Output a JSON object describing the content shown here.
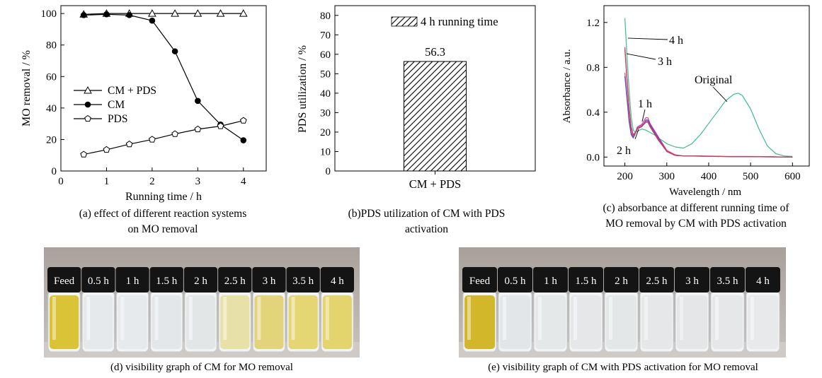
{
  "chart_data": [
    {
      "panel": "a",
      "type": "line",
      "xlabel": "Running time / h",
      "ylabel": "MO removal / %",
      "xlim": [
        0,
        4.5
      ],
      "ylim": [
        0,
        105
      ],
      "xticks": [
        "0",
        "1",
        "2",
        "3",
        "4"
      ],
      "yticks": [
        "0",
        "20",
        "40",
        "60",
        "80",
        "100"
      ],
      "legend_position": "center-left",
      "series": [
        {
          "name": "CM + PDS",
          "marker": "open-triangle",
          "x": [
            0.5,
            1,
            1.5,
            2,
            2.5,
            3,
            3.5,
            4
          ],
          "y": [
            99.5,
            100,
            100,
            100,
            100,
            100,
            100,
            100
          ]
        },
        {
          "name": "CM",
          "marker": "filled-circle",
          "x": [
            0.5,
            1,
            1.5,
            2,
            2.5,
            3,
            3.5,
            4
          ],
          "y": [
            99,
            99.5,
            99,
            95.5,
            76,
            44.5,
            29.5,
            19.5
          ]
        },
        {
          "name": "PDS",
          "marker": "open-pentagon",
          "x": [
            0.5,
            1,
            1.5,
            2,
            2.5,
            3,
            3.5,
            4
          ],
          "y": [
            10.5,
            13.5,
            17,
            20,
            23.5,
            26.5,
            28.5,
            32
          ]
        }
      ],
      "caption": [
        "(a) effect of different reaction systems",
        "on MO removal"
      ]
    },
    {
      "panel": "b",
      "type": "bar",
      "ylabel": "PDS utilization / %",
      "ylim": [
        0,
        85
      ],
      "yticks": [
        "0",
        "10",
        "20",
        "30",
        "40",
        "50",
        "60",
        "70",
        "80"
      ],
      "categories": [
        "CM + PDS"
      ],
      "values": [
        56.3
      ],
      "value_label": "56.3",
      "legend": "4 h running time",
      "legend_position": "top-right",
      "fill": "hatched",
      "caption": [
        "(b)PDS utilization of CM with PDS",
        "activation"
      ]
    },
    {
      "panel": "c",
      "type": "line",
      "xlabel": "Wavelength / nm",
      "ylabel": "Absorbance / a.u.",
      "xlim": [
        150,
        640
      ],
      "ylim": [
        -0.08,
        1.35
      ],
      "xticks": [
        "200",
        "300",
        "400",
        "500",
        "600"
      ],
      "yticks": [
        "0.0",
        "0.4",
        "0.8",
        "1.2"
      ],
      "series": [
        {
          "name": "Original",
          "color": "#3cbf8a",
          "x": [
            200,
            205,
            210,
            215,
            220,
            225,
            230,
            240,
            250,
            260,
            270,
            280,
            300,
            320,
            340,
            360,
            380,
            400,
            420,
            440,
            460,
            470,
            480,
            500,
            520,
            540,
            560,
            580,
            600
          ],
          "y": [
            1.24,
            0.9,
            0.6,
            0.36,
            0.24,
            0.22,
            0.23,
            0.25,
            0.24,
            0.22,
            0.2,
            0.17,
            0.12,
            0.09,
            0.08,
            0.12,
            0.2,
            0.3,
            0.4,
            0.5,
            0.56,
            0.57,
            0.55,
            0.43,
            0.25,
            0.1,
            0.03,
            0.01,
            0.005
          ]
        },
        {
          "name": "1 h",
          "color": "#e23a8c",
          "x": [
            200,
            205,
            210,
            215,
            220,
            225,
            230,
            240,
            250,
            255,
            260,
            270,
            280,
            300,
            320,
            340,
            380,
            450,
            500,
            550,
            600
          ],
          "y": [
            0.75,
            0.55,
            0.35,
            0.22,
            0.18,
            0.22,
            0.27,
            0.29,
            0.35,
            0.35,
            0.3,
            0.24,
            0.18,
            0.06,
            0.02,
            0.01,
            0.01,
            0.005,
            0.005,
            0.003,
            0.0
          ]
        },
        {
          "name": "2 h",
          "color": "#4a4ad8",
          "x": [
            200,
            205,
            210,
            215,
            220,
            225,
            230,
            240,
            250,
            255,
            260,
            270,
            280,
            300,
            320,
            340,
            380,
            450,
            500,
            550,
            600
          ],
          "y": [
            0.72,
            0.52,
            0.32,
            0.2,
            0.17,
            0.21,
            0.26,
            0.27,
            0.33,
            0.33,
            0.29,
            0.23,
            0.17,
            0.05,
            0.015,
            0.01,
            0.008,
            0.004,
            0.003,
            0.002,
            0.0
          ]
        },
        {
          "name": "3 h",
          "color": "#9a3fd0",
          "x": [
            200,
            205,
            210,
            215,
            220,
            225,
            230,
            240,
            250,
            255,
            260,
            270,
            280,
            300,
            320,
            340,
            380,
            450,
            500,
            550,
            600
          ],
          "y": [
            0.98,
            0.7,
            0.45,
            0.27,
            0.2,
            0.22,
            0.26,
            0.28,
            0.32,
            0.32,
            0.28,
            0.22,
            0.16,
            0.05,
            0.015,
            0.01,
            0.008,
            0.004,
            0.003,
            0.002,
            0.0
          ]
        },
        {
          "name": "4 h",
          "color": "#d04040",
          "x": [
            200,
            205,
            210,
            215,
            220,
            225,
            230,
            240,
            250,
            255,
            260,
            270,
            280,
            300,
            320,
            340,
            380,
            450,
            500,
            550,
            600
          ],
          "y": [
            0.96,
            0.68,
            0.44,
            0.26,
            0.19,
            0.21,
            0.25,
            0.27,
            0.31,
            0.31,
            0.27,
            0.21,
            0.15,
            0.05,
            0.015,
            0.01,
            0.008,
            0.004,
            0.003,
            0.002,
            0.0
          ]
        }
      ],
      "annotations": [
        "4 h",
        "3 h",
        "1 h",
        "2 h",
        "Original"
      ],
      "caption": [
        "(c) absorbance at different running time of",
        "MO removal by CM with PDS activation"
      ]
    }
  ],
  "photos": [
    {
      "panel": "d",
      "vials": [
        {
          "label": "Feed",
          "liquid": "#d8c12a"
        },
        {
          "label": "0.5 h",
          "liquid": "#e4e8ea"
        },
        {
          "label": "1 h",
          "liquid": "#e6e9eb"
        },
        {
          "label": "1.5 h",
          "liquid": "#e3e6e8"
        },
        {
          "label": "2 h",
          "liquid": "#e2e5e6"
        },
        {
          "label": "2.5 h",
          "liquid": "#e6dfa2"
        },
        {
          "label": "3 h",
          "liquid": "#e0d274"
        },
        {
          "label": "3.5 h",
          "liquid": "#e2d46c"
        },
        {
          "label": "4 h",
          "liquid": "#e2d266"
        }
      ],
      "caption": "(d) visibility graph of CM for MO removal"
    },
    {
      "panel": "e",
      "vials": [
        {
          "label": "Feed",
          "liquid": "#d0b320"
        },
        {
          "label": "0.5 h",
          "liquid": "#e2e5e7"
        },
        {
          "label": "1 h",
          "liquid": "#e4e7e8"
        },
        {
          "label": "1.5 h",
          "liquid": "#e4e6e8"
        },
        {
          "label": "2 h",
          "liquid": "#e3e6e7"
        },
        {
          "label": "2.5 h",
          "liquid": "#e4e6e7"
        },
        {
          "label": "3 h",
          "liquid": "#e3e5e6"
        },
        {
          "label": "3.5 h",
          "liquid": "#e4e6e8"
        },
        {
          "label": "4 h",
          "liquid": "#e6e8ea"
        }
      ],
      "caption": "(e) visibility graph of CM with PDS activation for MO removal"
    }
  ]
}
